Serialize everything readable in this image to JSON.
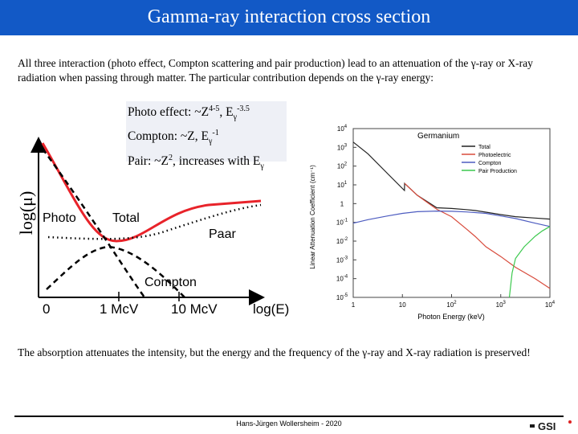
{
  "header": {
    "title": "Gamma-ray interaction cross section"
  },
  "intro_text": "All three interaction (photo effect, Compton scattering and pair production) lead to an attenuation of the γ-ray or X-ray radiation when passing through matter. The particular contribution depends on the γ-ray energy:",
  "formulas": {
    "photo": {
      "prefix": "Photo effect: ~Z",
      "z_exp": "4-5",
      "mid": ", E",
      "e_sub": "γ",
      "e_exp": "-3.5"
    },
    "compton": {
      "prefix": "Compton: ~Z, E",
      "e_sub": "γ",
      "e_exp": "-1"
    },
    "pair": {
      "prefix": "Pair: ~Z",
      "z_exp": "2",
      "mid": ", increases with E",
      "e_sub": "γ"
    }
  },
  "chart_data": [
    {
      "type": "line",
      "ylabel": "log(μ)",
      "xlabel": "log(E)",
      "x_tick_labels": [
        "0",
        "1 McV",
        "10 McV"
      ],
      "curve_labels": [
        "Photo",
        "Total",
        "Paar",
        "Compton"
      ],
      "series": [
        {
          "name": "Total",
          "color": "#e8232a",
          "style": "solid"
        },
        {
          "name": "Photo",
          "color": "#000000",
          "style": "dashed"
        },
        {
          "name": "Paar",
          "color": "#000000",
          "style": "dotted"
        },
        {
          "name": "Compton",
          "color": "#000000",
          "style": "dashed"
        }
      ]
    },
    {
      "type": "line",
      "title": "Germanium",
      "xlabel": "Photon Energy (keV)",
      "ylabel": "Linear Attenuation Coefficient (cm⁻¹)",
      "x_scale": "log",
      "y_scale": "log",
      "xlim": [
        1,
        10000
      ],
      "ylim": [
        1e-05,
        10000
      ],
      "x_ticks": [
        {
          "base": "1",
          "exp": ""
        },
        {
          "base": "10",
          "exp": ""
        },
        {
          "base": "10",
          "exp": "2"
        },
        {
          "base": "10",
          "exp": "3"
        },
        {
          "base": "10",
          "exp": "4"
        }
      ],
      "y_ticks": [
        {
          "base": "10",
          "exp": "4"
        },
        {
          "base": "10",
          "exp": "3"
        },
        {
          "base": "10",
          "exp": "2"
        },
        {
          "base": "10",
          "exp": "1"
        },
        {
          "base": "1",
          "exp": ""
        },
        {
          "base": "10",
          "exp": "-1"
        },
        {
          "base": "10",
          "exp": "-2"
        },
        {
          "base": "10",
          "exp": "-3"
        },
        {
          "base": "10",
          "exp": "-4"
        },
        {
          "base": "10",
          "exp": "-5"
        }
      ],
      "legend_position": "top-right",
      "series": [
        {
          "name": "Total",
          "color": "#222222",
          "x": [
            1,
            2,
            5,
            11,
            11.1,
            20,
            50,
            100,
            200,
            300,
            500,
            1000,
            2000,
            5000,
            10000
          ],
          "y": [
            1900,
            450,
            40,
            5,
            12,
            2.8,
            0.6,
            0.55,
            0.48,
            0.43,
            0.35,
            0.26,
            0.2,
            0.17,
            0.15
          ]
        },
        {
          "name": "Photoelectric",
          "color": "#d84b3c",
          "x": [
            11.1,
            20,
            50,
            100,
            200,
            300,
            500,
            1000,
            2000,
            5000,
            10000
          ],
          "y": [
            12,
            2.8,
            0.5,
            0.2,
            0.045,
            0.018,
            0.005,
            0.0015,
            0.0004,
            0.0001,
            3e-05
          ]
        },
        {
          "name": "Compton",
          "color": "#4d5cc0",
          "x": [
            1,
            2,
            5,
            10,
            20,
            50,
            100,
            200,
            500,
            1000,
            2000,
            5000,
            10000
          ],
          "y": [
            0.09,
            0.14,
            0.22,
            0.3,
            0.37,
            0.4,
            0.39,
            0.36,
            0.3,
            0.22,
            0.16,
            0.09,
            0.06
          ]
        },
        {
          "name": "Pair Production",
          "color": "#3cc94e",
          "x": [
            1500,
            1700,
            2000,
            3000,
            5000,
            7000,
            10000
          ],
          "y": [
            1e-05,
            0.0002,
            0.0012,
            0.005,
            0.018,
            0.035,
            0.06
          ]
        }
      ]
    }
  ],
  "conclusion_text": "The absorption attenuates the intensity, but the energy and the frequency of the γ-ray and X-ray radiation is preserved!",
  "footer": {
    "author": "Hans-Jürgen Wollersheim - 2020",
    "logo_text": "GSI"
  }
}
